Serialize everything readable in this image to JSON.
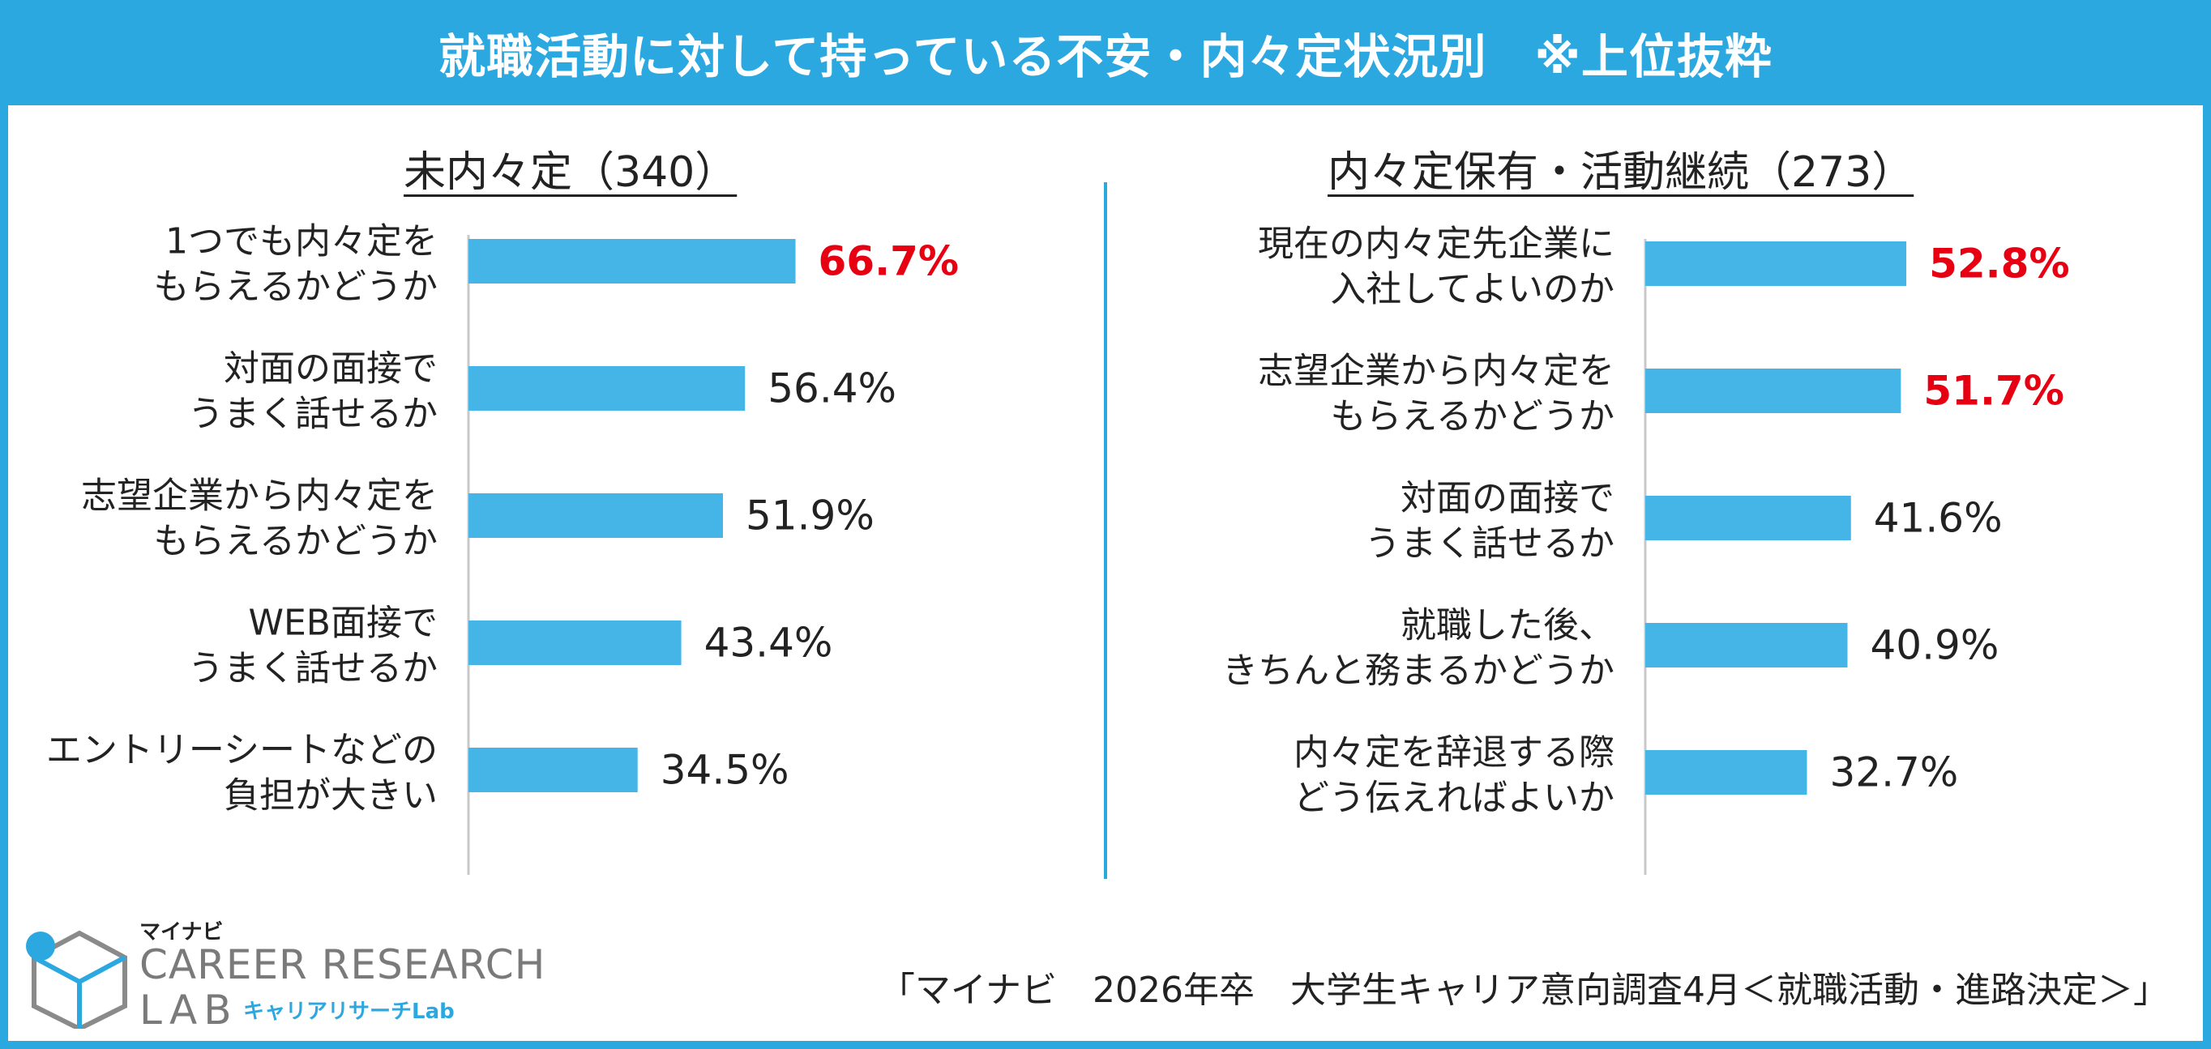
{
  "header": {
    "title": "就職活動に対して持っている不安・内々定状況別　※上位抜粋"
  },
  "colors": {
    "bar": "#45B5E8",
    "highlight_label": "#E60012",
    "normal_label": "#222222",
    "accent": "#2CA8E0"
  },
  "chart_data": [
    {
      "type": "bar",
      "orientation": "horizontal",
      "title": "未内々定（340）",
      "unit": "%",
      "xlim": [
        0,
        100
      ],
      "grid": false,
      "categories": [
        [
          "1つでも内々定を",
          "もらえるかどうか"
        ],
        [
          "対面の面接で",
          "うまく話せるか"
        ],
        [
          "志望企業から内々定を",
          "もらえるかどうか"
        ],
        [
          "WEB面接で",
          "うまく話せるか"
        ],
        [
          "エントリーシートなどの",
          "負担が大きい"
        ]
      ],
      "values": [
        66.7,
        56.4,
        51.9,
        43.4,
        34.5
      ],
      "value_labels": [
        "66.7%",
        "56.4%",
        "51.9%",
        "43.4%",
        "34.5%"
      ],
      "highlight": [
        true,
        false,
        false,
        false,
        false
      ]
    },
    {
      "type": "bar",
      "orientation": "horizontal",
      "title": "内々定保有・活動継続（273）",
      "unit": "%",
      "xlim": [
        0,
        100
      ],
      "grid": false,
      "categories": [
        [
          "現在の内々定先企業に",
          "入社してよいのか"
        ],
        [
          "志望企業から内々定を",
          "もらえるかどうか"
        ],
        [
          "対面の面接で",
          "うまく話せるか"
        ],
        [
          "就職した後、",
          "きちんと務まるかどうか"
        ],
        [
          "内々定を辞退する際",
          "どう伝えればよいか"
        ]
      ],
      "values": [
        52.8,
        51.7,
        41.6,
        40.9,
        32.7
      ],
      "value_labels": [
        "52.8%",
        "51.7%",
        "41.6%",
        "40.9%",
        "32.7%"
      ],
      "highlight": [
        true,
        true,
        false,
        false,
        false
      ]
    }
  ],
  "logo": {
    "small": "マイナビ",
    "main": "CAREER RESEARCH",
    "lab": "LAB",
    "sub": "キャリアリサーチLab"
  },
  "source": "「マイナビ　2026年卒　大学生キャリア意向調査4月＜就職活動・進路決定＞」"
}
